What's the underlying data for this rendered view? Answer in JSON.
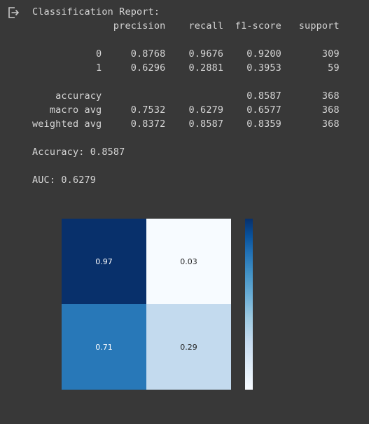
{
  "output": {
    "icon": "output-arrow-icon",
    "report_lines": [
      "Classification Report:",
      "              precision    recall  f1-score   support",
      "",
      "           0     0.8768    0.9676    0.9200       309",
      "           1     0.6296    0.2881    0.3953        59",
      "",
      "    accuracy                         0.8587       368",
      "   macro avg     0.7532    0.6279    0.6577       368",
      "weighted avg     0.8372    0.8587    0.8359       368",
      "",
      "Accuracy: 0.8587",
      "",
      "AUC: 0.6279"
    ]
  },
  "chart_data": {
    "type": "heatmap",
    "cells": [
      {
        "row": 0,
        "col": 0,
        "value": 0.97,
        "label": "0.97",
        "color": "#08306b",
        "text_color": "#ffffff"
      },
      {
        "row": 0,
        "col": 1,
        "value": 0.03,
        "label": "0.03",
        "color": "#f7fbff",
        "text_color": "#262626"
      },
      {
        "row": 1,
        "col": 0,
        "value": 0.71,
        "label": "0.71",
        "color": "#2878b8",
        "text_color": "#ffffff"
      },
      {
        "row": 1,
        "col": 1,
        "value": 0.29,
        "label": "0.29",
        "color": "#c3daee",
        "text_color": "#262626"
      }
    ],
    "colormap": "Blues",
    "colorbar": true
  }
}
